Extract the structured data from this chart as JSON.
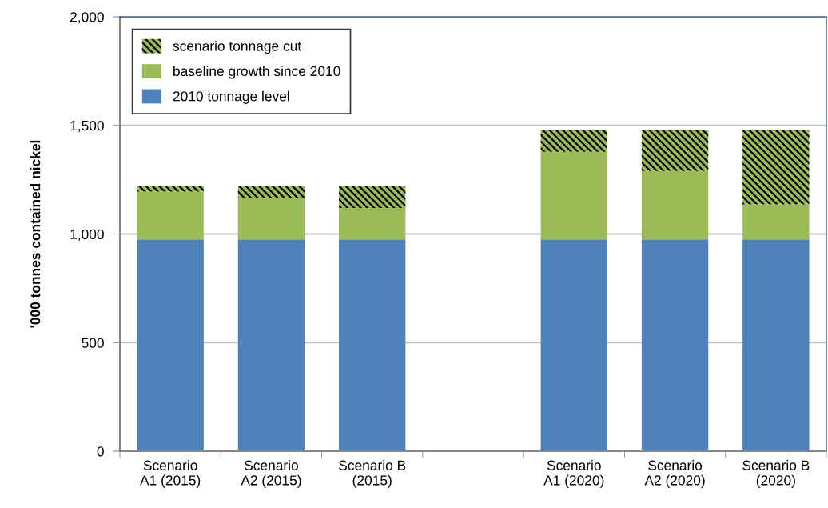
{
  "chart_data": {
    "type": "bar",
    "stacked": true,
    "categories": [
      "Scenario\nA1 (2015)",
      "Scenario\nA2 (2015)",
      "Scenario B\n(2015)",
      null,
      "Scenario\nA1 (2020)",
      "Scenario\nA2 (2020)",
      "Scenario B\n(2020)"
    ],
    "series": [
      {
        "name": "2010 tonnage level",
        "color": "#4f81bd",
        "values": [
          975,
          975,
          975,
          null,
          975,
          975,
          975
        ]
      },
      {
        "name": "baseline growth since 2010",
        "color": "#9bbb59",
        "values": [
          220,
          189,
          145,
          null,
          403,
          315,
          161
        ]
      },
      {
        "name": "scenario tonnage cut",
        "color": "#9bbb59",
        "values": [
          27,
          58,
          102,
          null,
          100,
          188,
          342
        ]
      }
    ],
    "ylabel": "'000 tonnes contained nickel",
    "ylim": [
      0,
      2000
    ],
    "yticks": [
      0,
      500,
      {
        "value": 1000,
        "label": "1,000"
      },
      {
        "value": 1500,
        "label": "1,500"
      },
      {
        "value": 2000,
        "label": "2,000"
      }
    ],
    "grid": "y",
    "legend": "top left"
  }
}
